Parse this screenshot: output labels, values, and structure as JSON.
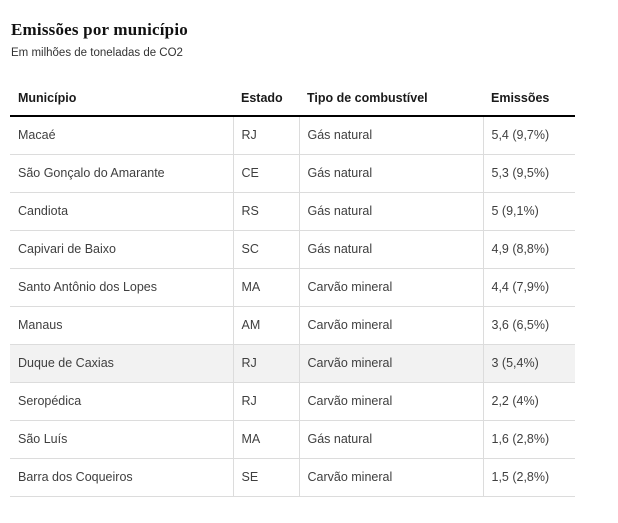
{
  "title": "Emissões por município",
  "subtitle": "Em milhões de toneladas de CO2",
  "chart_data": {
    "type": "table",
    "columns": [
      "Município",
      "Estado",
      "Tipo de combustível",
      "Emissões"
    ],
    "rows": [
      {
        "municipio": "Macaé",
        "estado": "RJ",
        "combustivel": "Gás natural",
        "emissoes": "5,4 (9,7%)",
        "highlighted": false
      },
      {
        "municipio": "São Gonçalo do Amarante",
        "estado": "CE",
        "combustivel": "Gás natural",
        "emissoes": "5,3 (9,5%)",
        "highlighted": false
      },
      {
        "municipio": "Candiota",
        "estado": "RS",
        "combustivel": "Gás natural",
        "emissoes": "5 (9,1%)",
        "highlighted": false
      },
      {
        "municipio": "Capivari de Baixo",
        "estado": "SC",
        "combustivel": "Gás natural",
        "emissoes": "4,9 (8,8%)",
        "highlighted": false
      },
      {
        "municipio": "Santo Antônio dos Lopes",
        "estado": "MA",
        "combustivel": "Carvão mineral",
        "emissoes": "4,4 (7,9%)",
        "highlighted": false
      },
      {
        "municipio": "Manaus",
        "estado": "AM",
        "combustivel": "Carvão mineral",
        "emissoes": "3,6 (6,5%)",
        "highlighted": false
      },
      {
        "municipio": "Duque de Caxias",
        "estado": "RJ",
        "combustivel": "Carvão mineral",
        "emissoes": "3 (5,4%)",
        "highlighted": true
      },
      {
        "municipio": "Seropédica",
        "estado": "RJ",
        "combustivel": "Carvão mineral",
        "emissoes": "2,2 (4%)",
        "highlighted": false
      },
      {
        "municipio": "São Luís",
        "estado": "MA",
        "combustivel": "Gás natural",
        "emissoes": "1,6 (2,8%)",
        "highlighted": false
      },
      {
        "municipio": "Barra dos Coqueiros",
        "estado": "SE",
        "combustivel": "Carvão mineral",
        "emissoes": "1,5 (2,8%)",
        "highlighted": false
      }
    ]
  },
  "colors": {
    "header_rule": "#000000",
    "row_border": "#dcdcdc",
    "highlight_row_bg": "#f2f2f2",
    "text": "#3f3f3f",
    "title_text": "#111111"
  }
}
